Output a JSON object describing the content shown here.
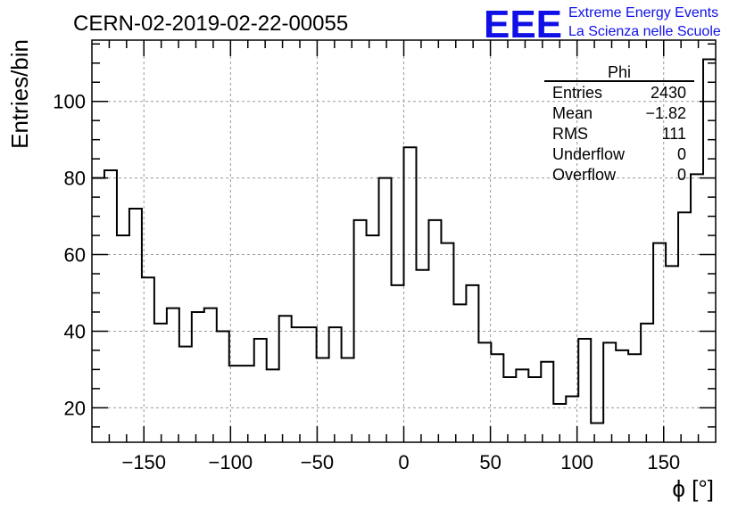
{
  "chart_data": {
    "type": "histogram",
    "title": "CERN-02-2019-02-22-00055",
    "xlabel": "ϕ [°]",
    "ylabel": "Entries/bin",
    "xlim": [
      -180,
      180
    ],
    "ylim": [
      11,
      116
    ],
    "x_ticks": [
      -150,
      -100,
      -50,
      0,
      50,
      100,
      150
    ],
    "y_ticks": [
      20,
      40,
      60,
      80,
      100
    ],
    "grid": true,
    "bin_edges_start": -180,
    "bin_width": 7.2,
    "values": [
      80,
      82,
      65,
      72,
      54,
      42,
      46,
      36,
      45,
      46,
      40,
      31,
      31,
      38,
      30,
      44,
      41,
      41,
      33,
      41,
      33,
      69,
      65,
      80,
      52,
      88,
      56,
      69,
      63,
      47,
      52,
      37,
      34,
      28,
      30,
      28,
      32,
      21,
      23,
      38,
      16,
      37,
      35,
      34,
      42,
      63,
      57,
      71,
      81,
      111
    ],
    "stats": {
      "title": "Phi",
      "rows": [
        {
          "label": "Entries",
          "value": "2430"
        },
        {
          "label": "Mean",
          "value": "−1.82"
        },
        {
          "label": "RMS",
          "value": "111"
        },
        {
          "label": "Underflow",
          "value": "0"
        },
        {
          "label": "Overflow",
          "value": "0"
        }
      ]
    }
  },
  "logo": {
    "mark": "EEE",
    "line1": "Extreme Energy Events",
    "line2": "La Scienza nelle Scuole",
    "color": "#1010e6"
  }
}
